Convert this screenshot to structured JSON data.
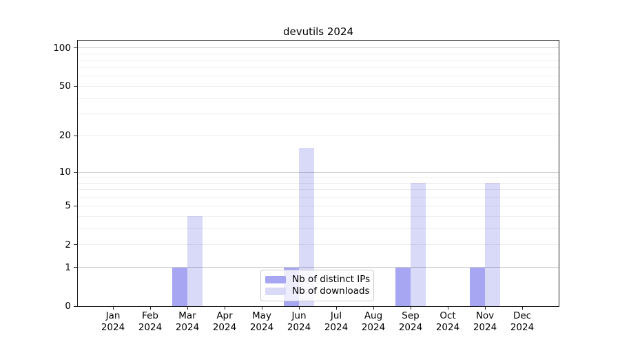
{
  "chart_data": {
    "type": "bar",
    "title": "devutils 2024",
    "categories": [
      "Jan",
      "Feb",
      "Mar",
      "Apr",
      "May",
      "Jun",
      "Jul",
      "Aug",
      "Sep",
      "Oct",
      "Nov",
      "Dec"
    ],
    "x_year": "2024",
    "series": [
      {
        "name": "Nb of distinct IPs",
        "color": "#a6a6f2",
        "values": [
          0,
          0,
          1,
          0,
          0,
          1,
          0,
          0,
          1,
          0,
          1,
          0
        ]
      },
      {
        "name": "Nb of downloads",
        "color": "#d9d9f8",
        "values": [
          0,
          0,
          4,
          0,
          0,
          16,
          0,
          0,
          8,
          0,
          8,
          0
        ]
      }
    ],
    "yscale": "log1p",
    "ylim": [
      0,
      114
    ],
    "yticks": [
      0,
      1,
      2,
      5,
      10,
      20,
      50,
      100
    ],
    "major_gridlines": [
      1,
      10,
      100
    ],
    "minor_gridlines": [
      2,
      3,
      4,
      5,
      6,
      7,
      8,
      9,
      20,
      30,
      40,
      50,
      60,
      70,
      80,
      90
    ],
    "grid": true,
    "legend_position": "lower center"
  }
}
